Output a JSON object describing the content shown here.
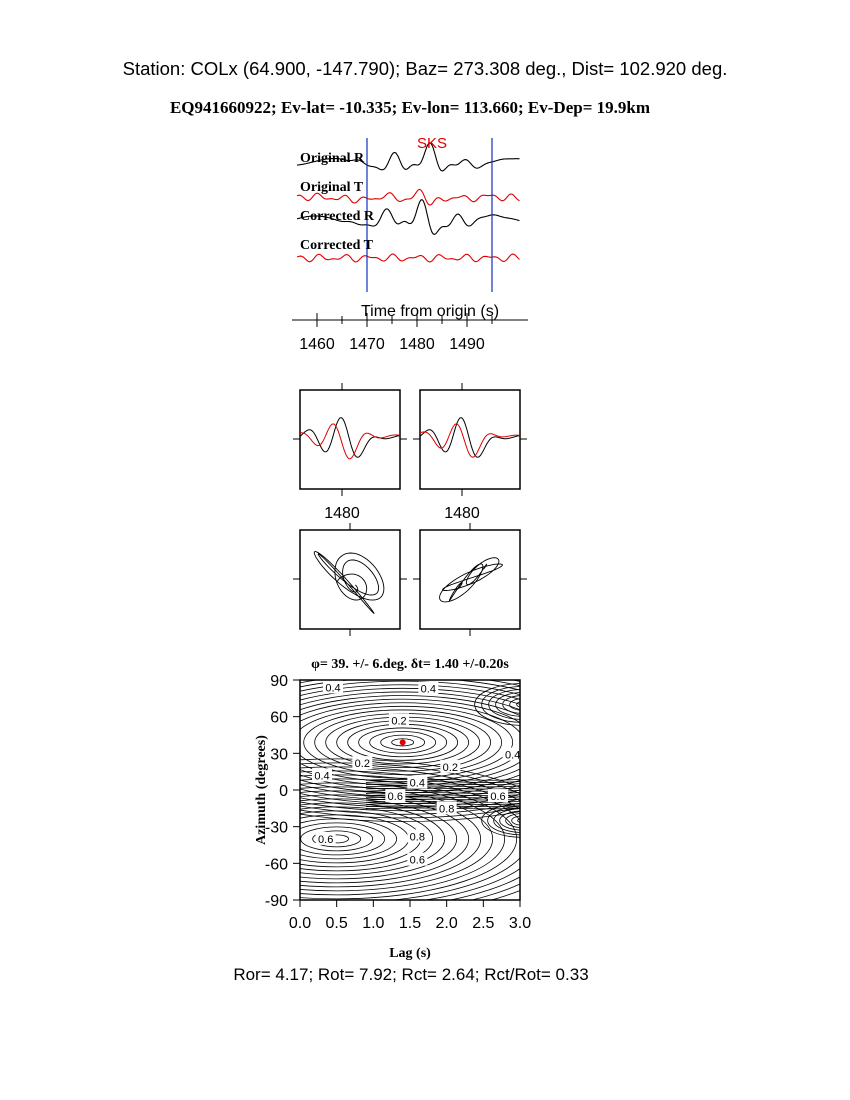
{
  "header": {
    "station_line": "Station: COLx (64.900, -147.790); Baz=  273.308 deg., Dist=  102.920 deg.",
    "event_line": "EQ941660922; Ev-lat= -10.335; Ev-lon= 113.660; Ev-Dep= 19.9km"
  },
  "footer": {
    "ratios": "Ror= 4.17; Rot= 7.92; Rct= 2.64; Rct/Rot= 0.33"
  },
  "colors": {
    "radial": "#000000",
    "transverse": "#e00000",
    "window_line": "#1030c0",
    "phase": "#e00000"
  },
  "chart_data": [
    {
      "type": "line",
      "panel": "seismograms",
      "phase_label": "SKS",
      "trace_labels": [
        "Original R",
        "Original T",
        "Corrected R",
        "Corrected T"
      ],
      "xlabel": "Time from origin (s)",
      "x_ticks": [
        "1460",
        "1470",
        "1480",
        "1490"
      ],
      "window": [
        1470,
        1495
      ],
      "xlim": [
        1455,
        1500
      ]
    },
    {
      "type": "line",
      "panel": "overlay-original",
      "x_tick": "1480"
    },
    {
      "type": "line",
      "panel": "overlay-corrected",
      "x_tick": "1480"
    },
    {
      "type": "line",
      "panel": "particle-motion-original"
    },
    {
      "type": "line",
      "panel": "particle-motion-corrected"
    },
    {
      "type": "heatmap",
      "panel": "energy-contour",
      "title": "φ= 39. +/- 6.deg. δt= 1.40 +/-0.20s",
      "xlabel": "Lag (s)",
      "ylabel": "Azimuth (degrees)",
      "x_ticks": [
        "0.0",
        "0.5",
        "1.0",
        "1.5",
        "2.0",
        "2.5",
        "3.0"
      ],
      "y_ticks": [
        "90",
        "60",
        "30",
        "0",
        "-30",
        "-60",
        "-90"
      ],
      "xlim": [
        0,
        3
      ],
      "ylim": [
        -90,
        90
      ],
      "best_fit": {
        "lag": 1.4,
        "azimuth": 39
      },
      "contour_labels": [
        "0.4",
        "0.4",
        "0.2",
        "0.4",
        "0.2",
        "0.4",
        "0.2",
        "0.4",
        "0.6",
        "0.6",
        "0.8",
        "0.8",
        "0.6",
        "0.6"
      ]
    }
  ]
}
